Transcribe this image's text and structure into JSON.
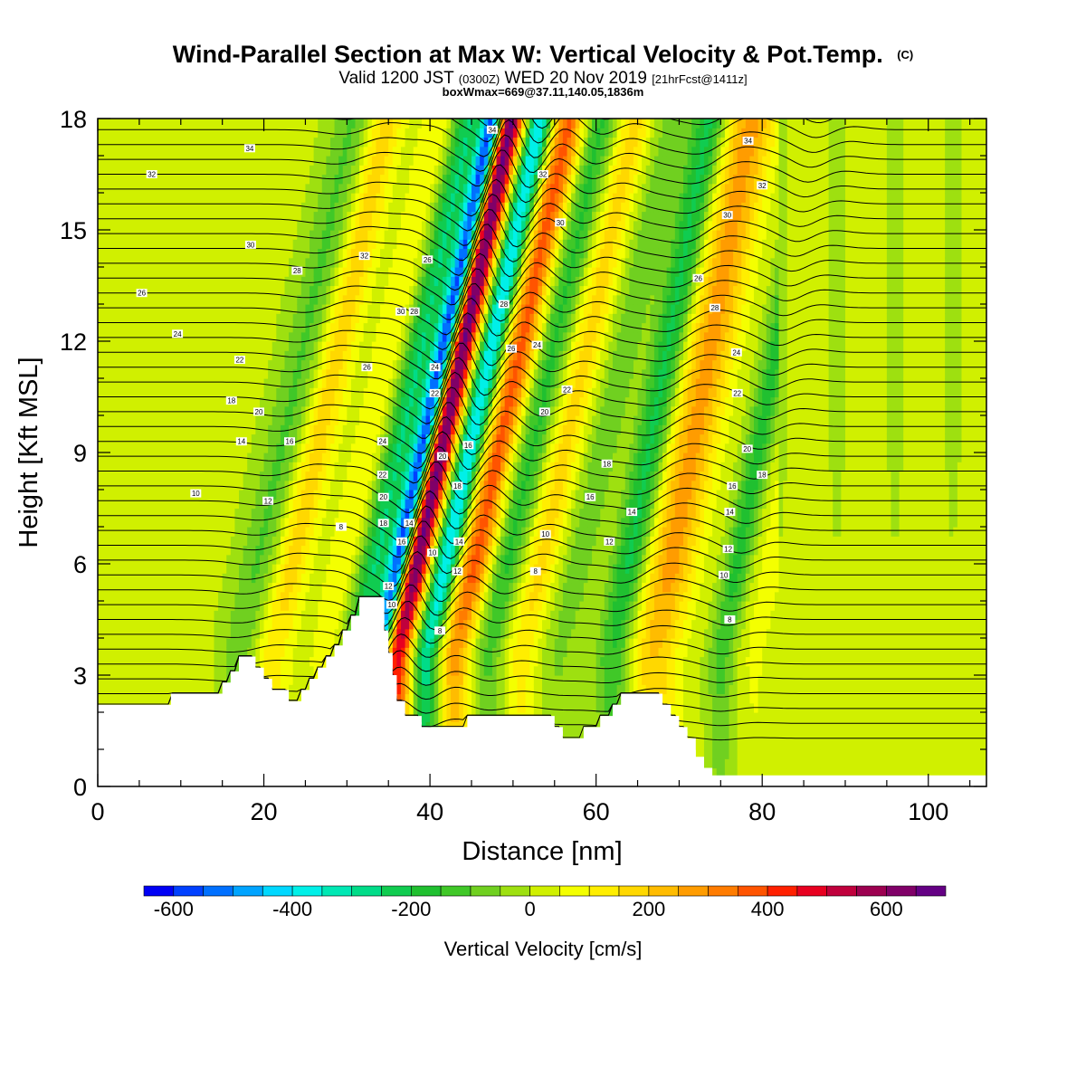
{
  "chart_data": {
    "type": "heatmap",
    "title": {
      "main": "Wind-Parallel Section at Max W: Vertical Velocity & Pot.Temp.",
      "main_mark": "(C)",
      "line2_a": "Valid 1200 JST",
      "line2_b": "(0300Z)",
      "line2_c": "WED 20 Nov 2019",
      "line2_d": "[21hrFcst@1411z]",
      "line3": "boxWmax=669@37.11,140.05,1836m"
    },
    "xlabel": "Distance [nm]",
    "ylabel": "Height [Kft MSL]",
    "xlim": [
      0,
      107
    ],
    "ylim": [
      0,
      18
    ],
    "x_ticks": [
      0,
      20,
      40,
      60,
      80,
      100
    ],
    "y_ticks": [
      0,
      3,
      6,
      9,
      12,
      15,
      18
    ],
    "x_minor_step": 5,
    "y_minor_step": 1,
    "colorbar": {
      "label": "Vertical Velocity [cm/s]",
      "min": -650,
      "max": 700,
      "step": 50,
      "ticks": [
        -600,
        -400,
        -200,
        0,
        200,
        400,
        600
      ],
      "colors": [
        "#0000f5",
        "#0040ff",
        "#0070ff",
        "#00a4ff",
        "#00d8ff",
        "#00f0e8",
        "#00e8b4",
        "#00dc88",
        "#10cc50",
        "#20c030",
        "#40c828",
        "#70d020",
        "#9ee010",
        "#d0f000",
        "#f4ff00",
        "#ffee00",
        "#ffd800",
        "#ffbc00",
        "#ff9c00",
        "#ff7c00",
        "#ff5400",
        "#ff2000",
        "#e80020",
        "#c0003c",
        "#9c0050",
        "#800068",
        "#640084"
      ]
    },
    "velocity_bands": [
      {
        "x_surface": 17,
        "amp": -120,
        "width": 2.5
      },
      {
        "x_surface": 21,
        "amp": 170,
        "width": 2.2
      },
      {
        "x_surface": 27,
        "amp": 90,
        "width": 1.8
      },
      {
        "x_surface": 31,
        "amp": -260,
        "width": 1.8
      },
      {
        "x_surface": 33.8,
        "amp": -600,
        "width": 1.2
      },
      {
        "x_surface": 36,
        "amp": 660,
        "width": 1.5
      },
      {
        "x_surface": 39.5,
        "amp": -420,
        "width": 1.4
      },
      {
        "x_surface": 43,
        "amp": 360,
        "width": 1.8
      },
      {
        "x_surface": 47,
        "amp": -170,
        "width": 1.8
      },
      {
        "x_surface": 51,
        "amp": 160,
        "width": 2.0
      },
      {
        "x_surface": 55.5,
        "amp": -90,
        "width": 2.2
      },
      {
        "x_surface": 62,
        "amp": -230,
        "width": 2.0
      },
      {
        "x_surface": 67,
        "amp": 260,
        "width": 3.0
      },
      {
        "x_surface": 75,
        "amp": -180,
        "width": 1.6
      },
      {
        "x_surface": 79,
        "amp": 70,
        "width": 1.8
      }
    ],
    "band_tilt_nm_per_kft": 0.95,
    "terrain": [
      [
        0,
        2.2
      ],
      [
        8.8,
        2.2
      ],
      [
        8.8,
        2.5
      ],
      [
        15,
        2.5
      ],
      [
        15,
        2.8
      ],
      [
        16,
        2.8
      ],
      [
        16,
        3.1
      ],
      [
        17,
        3.1
      ],
      [
        17,
        3.5
      ],
      [
        19,
        3.5
      ],
      [
        19,
        3.2
      ],
      [
        20,
        3.2
      ],
      [
        20,
        2.9
      ],
      [
        21,
        2.9
      ],
      [
        21,
        2.6
      ],
      [
        23,
        2.6
      ],
      [
        23,
        2.3
      ],
      [
        24.5,
        2.3
      ],
      [
        24.5,
        2.6
      ],
      [
        25.5,
        2.6
      ],
      [
        25.5,
        2.9
      ],
      [
        26.5,
        2.9
      ],
      [
        26.5,
        3.2
      ],
      [
        27.5,
        3.2
      ],
      [
        27.5,
        3.5
      ],
      [
        28.5,
        3.5
      ],
      [
        28.5,
        3.8
      ],
      [
        29.5,
        3.8
      ],
      [
        29.5,
        4.2
      ],
      [
        30.5,
        4.2
      ],
      [
        30.5,
        4.6
      ],
      [
        31.5,
        4.6
      ],
      [
        31.5,
        5.1
      ],
      [
        34.5,
        5.1
      ],
      [
        34.5,
        4.2
      ],
      [
        35,
        4.2
      ],
      [
        35,
        3.6
      ],
      [
        35.5,
        3.6
      ],
      [
        35.5,
        3.0
      ],
      [
        36,
        3.0
      ],
      [
        36,
        2.3
      ],
      [
        37,
        2.3
      ],
      [
        37,
        1.9
      ],
      [
        39,
        1.9
      ],
      [
        39,
        1.6
      ],
      [
        44.5,
        1.6
      ],
      [
        44.5,
        1.9
      ],
      [
        55,
        1.9
      ],
      [
        55,
        1.6
      ],
      [
        56,
        1.6
      ],
      [
        56,
        1.3
      ],
      [
        58.5,
        1.3
      ],
      [
        58.5,
        1.6
      ],
      [
        60.5,
        1.6
      ],
      [
        60.5,
        1.9
      ],
      [
        62,
        1.9
      ],
      [
        62,
        2.2
      ],
      [
        63,
        2.2
      ],
      [
        63,
        2.5
      ],
      [
        68,
        2.5
      ],
      [
        68,
        2.2
      ],
      [
        69,
        2.2
      ],
      [
        69,
        1.9
      ],
      [
        70,
        1.9
      ],
      [
        70,
        1.6
      ],
      [
        71,
        1.6
      ],
      [
        71,
        1.3
      ],
      [
        72,
        1.3
      ],
      [
        72,
        0.8
      ],
      [
        73,
        0.8
      ],
      [
        73,
        0.5
      ],
      [
        74,
        0.5
      ],
      [
        74,
        0.3
      ],
      [
        107,
        0.3
      ]
    ],
    "contour_labels": [
      {
        "text": "34",
        "x": 18.3,
        "y": 17.2
      },
      {
        "text": "32",
        "x": 6.5,
        "y": 16.5
      },
      {
        "text": "30",
        "x": 18.4,
        "y": 14.6
      },
      {
        "text": "28",
        "x": 24.0,
        "y": 13.9
      },
      {
        "text": "26",
        "x": 5.3,
        "y": 13.3
      },
      {
        "text": "24",
        "x": 9.6,
        "y": 12.2
      },
      {
        "text": "22",
        "x": 17.1,
        "y": 11.5
      },
      {
        "text": "18",
        "x": 16.1,
        "y": 10.4
      },
      {
        "text": "20",
        "x": 19.4,
        "y": 10.1
      },
      {
        "text": "14",
        "x": 17.3,
        "y": 9.3
      },
      {
        "text": "16",
        "x": 23.1,
        "y": 9.3
      },
      {
        "text": "10",
        "x": 11.8,
        "y": 7.9
      },
      {
        "text": "12",
        "x": 20.5,
        "y": 7.7
      },
      {
        "text": "8",
        "x": 29.3,
        "y": 7.0
      },
      {
        "text": "32",
        "x": 32.1,
        "y": 14.3
      },
      {
        "text": "26",
        "x": 32.4,
        "y": 11.3
      },
      {
        "text": "24",
        "x": 34.3,
        "y": 9.3
      },
      {
        "text": "22",
        "x": 34.3,
        "y": 8.4
      },
      {
        "text": "20",
        "x": 34.4,
        "y": 7.8
      },
      {
        "text": "18",
        "x": 34.4,
        "y": 7.1
      },
      {
        "text": "16",
        "x": 36.6,
        "y": 6.6
      },
      {
        "text": "14",
        "x": 37.5,
        "y": 7.1
      },
      {
        "text": "12",
        "x": 35.0,
        "y": 5.4
      },
      {
        "text": "10",
        "x": 35.4,
        "y": 4.9
      },
      {
        "text": "30",
        "x": 36.5,
        "y": 12.8
      },
      {
        "text": "28",
        "x": 38.1,
        "y": 12.8
      },
      {
        "text": "26",
        "x": 39.7,
        "y": 14.2
      },
      {
        "text": "24",
        "x": 40.6,
        "y": 11.3
      },
      {
        "text": "22",
        "x": 40.6,
        "y": 10.6
      },
      {
        "text": "20",
        "x": 41.5,
        "y": 8.9
      },
      {
        "text": "18",
        "x": 43.3,
        "y": 8.1
      },
      {
        "text": "16",
        "x": 44.6,
        "y": 9.2
      },
      {
        "text": "10",
        "x": 40.3,
        "y": 6.3
      },
      {
        "text": "14",
        "x": 43.5,
        "y": 6.6
      },
      {
        "text": "12",
        "x": 43.3,
        "y": 5.8
      },
      {
        "text": "8",
        "x": 41.2,
        "y": 4.2
      },
      {
        "text": "34",
        "x": 47.5,
        "y": 17.7
      },
      {
        "text": "32",
        "x": 53.6,
        "y": 16.5
      },
      {
        "text": "30",
        "x": 55.7,
        "y": 15.2
      },
      {
        "text": "28",
        "x": 48.9,
        "y": 13.0
      },
      {
        "text": "26",
        "x": 49.8,
        "y": 11.8
      },
      {
        "text": "24",
        "x": 52.9,
        "y": 11.9
      },
      {
        "text": "22",
        "x": 56.5,
        "y": 10.7
      },
      {
        "text": "20",
        "x": 53.8,
        "y": 10.1
      },
      {
        "text": "18",
        "x": 61.3,
        "y": 8.7
      },
      {
        "text": "16",
        "x": 59.3,
        "y": 7.8
      },
      {
        "text": "14",
        "x": 64.3,
        "y": 7.4
      },
      {
        "text": "12",
        "x": 61.6,
        "y": 6.6
      },
      {
        "text": "10",
        "x": 53.9,
        "y": 6.8
      },
      {
        "text": "8",
        "x": 52.7,
        "y": 5.8
      },
      {
        "text": "34",
        "x": 78.3,
        "y": 17.4
      },
      {
        "text": "32",
        "x": 80.0,
        "y": 16.2
      },
      {
        "text": "30",
        "x": 75.8,
        "y": 15.4
      },
      {
        "text": "26",
        "x": 72.3,
        "y": 13.7
      },
      {
        "text": "28",
        "x": 74.3,
        "y": 12.9
      },
      {
        "text": "24",
        "x": 76.9,
        "y": 11.7
      },
      {
        "text": "22",
        "x": 77.0,
        "y": 10.6
      },
      {
        "text": "20",
        "x": 78.2,
        "y": 9.1
      },
      {
        "text": "18",
        "x": 80.0,
        "y": 8.4
      },
      {
        "text": "16",
        "x": 76.4,
        "y": 8.1
      },
      {
        "text": "14",
        "x": 76.1,
        "y": 7.4
      },
      {
        "text": "12",
        "x": 75.9,
        "y": 6.4
      },
      {
        "text": "10",
        "x": 75.4,
        "y": 5.7
      },
      {
        "text": "8",
        "x": 76.1,
        "y": 4.5
      }
    ]
  }
}
